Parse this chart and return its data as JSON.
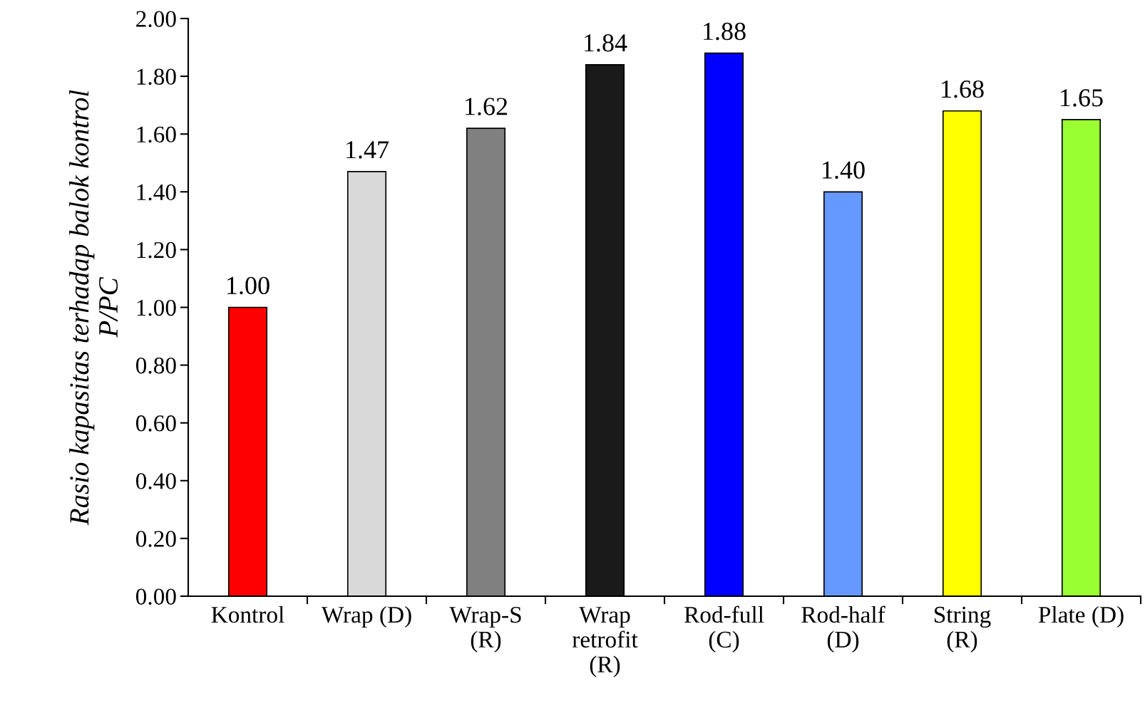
{
  "chart_data": {
    "type": "bar",
    "ylabel": "Rasio kapasitas terhadap balok kontrol\nP/PC",
    "categories": [
      "Kontrol",
      "Wrap (D)",
      "Wrap-S\n(R)",
      "Wrap\nretrofit\n(R)",
      "Rod-full\n(C)",
      "Rod-half\n(D)",
      "String\n(R)",
      "Plate (D)"
    ],
    "values": [
      1.0,
      1.47,
      1.62,
      1.84,
      1.88,
      1.4,
      1.68,
      1.65
    ],
    "colors": [
      "#ff0000",
      "#d9d9d9",
      "#808080",
      "#1a1a1a",
      "#0000ff",
      "#6699ff",
      "#ffff00",
      "#99ff33"
    ],
    "value_labels": [
      "1.00",
      "1.47",
      "1.62",
      "1.84",
      "1.88",
      "1.40",
      "1.68",
      "1.65"
    ],
    "ylim": [
      0,
      2
    ],
    "yticks": [
      {
        "value": 0,
        "label": "0.00"
      },
      {
        "value": 0.2,
        "label": "0.20"
      },
      {
        "value": 0.4,
        "label": "0.40"
      },
      {
        "value": 0.6,
        "label": "0.60"
      },
      {
        "value": 0.8,
        "label": "0.80"
      },
      {
        "value": 1.0,
        "label": "1.00"
      },
      {
        "value": 1.2,
        "label": "1.20"
      },
      {
        "value": 1.4,
        "label": "1.40"
      },
      {
        "value": 1.6,
        "label": "1.60"
      },
      {
        "value": 1.8,
        "label": "1.80"
      },
      {
        "value": 2.0,
        "label": "2.00"
      }
    ],
    "grid": false,
    "legend": false
  }
}
